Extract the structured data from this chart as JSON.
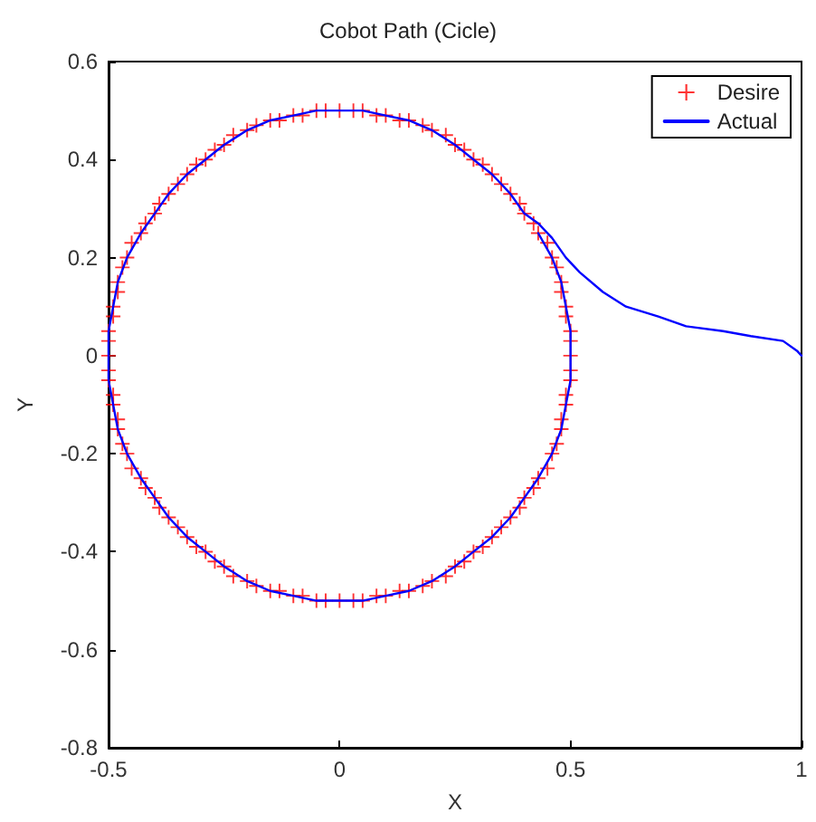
{
  "chart_data": {
    "type": "line",
    "title": "Cobot Path (Cicle)",
    "xlabel": "X",
    "ylabel": "Y",
    "xlim": [
      -0.5,
      1
    ],
    "xticks": [
      -0.5,
      0,
      0.5,
      1
    ],
    "ylim": [
      -0.8,
      0.6
    ],
    "yticks": [
      -0.8,
      -0.6,
      -0.4,
      -0.2,
      0,
      0.2,
      0.4,
      0.6
    ],
    "grid": false,
    "legend": "top right",
    "series": [
      {
        "name": "Desire",
        "type": "scatter",
        "marker": "cross",
        "color": "#ff0000",
        "x": [
          0.5,
          0.5,
          0.5,
          0.49,
          0.49,
          0.48,
          0.48,
          0.47,
          0.46,
          0.45,
          0.43,
          0.42,
          0.4,
          0.39,
          0.37,
          0.35,
          0.33,
          0.31,
          0.29,
          0.27,
          0.25,
          0.23,
          0.2,
          0.18,
          0.15,
          0.13,
          0.1,
          0.08,
          0.05,
          0.03,
          0,
          -0.03,
          -0.05,
          -0.08,
          -0.1,
          -0.13,
          -0.15,
          -0.18,
          -0.2,
          -0.23,
          -0.25,
          -0.27,
          -0.29,
          -0.31,
          -0.33,
          -0.35,
          -0.37,
          -0.39,
          -0.4,
          -0.42,
          -0.43,
          -0.45,
          -0.46,
          -0.47,
          -0.48,
          -0.48,
          -0.49,
          -0.49,
          -0.5,
          -0.5,
          -0.5,
          -0.5,
          -0.5,
          -0.49,
          -0.49,
          -0.48,
          -0.48,
          -0.47,
          -0.46,
          -0.45,
          -0.43,
          -0.42,
          -0.4,
          -0.39,
          -0.37,
          -0.35,
          -0.33,
          -0.31,
          -0.29,
          -0.27,
          -0.25,
          -0.23,
          -0.2,
          -0.18,
          -0.15,
          -0.13,
          -0.1,
          -0.08,
          -0.05,
          -0.03,
          0,
          0.03,
          0.05,
          0.08,
          0.1,
          0.13,
          0.15,
          0.18,
          0.2,
          0.23,
          0.25,
          0.27,
          0.29,
          0.31,
          0.33,
          0.35,
          0.37,
          0.39,
          0.4,
          0.42,
          0.43,
          0.45,
          0.46,
          0.47,
          0.48,
          0.48,
          0.49,
          0.49,
          0.5,
          0.5
        ],
        "values": [
          0,
          0.03,
          0.05,
          0.08,
          0.1,
          0.13,
          0.15,
          0.18,
          0.2,
          0.23,
          0.25,
          0.27,
          0.29,
          0.31,
          0.33,
          0.35,
          0.37,
          0.39,
          0.4,
          0.42,
          0.43,
          0.45,
          0.46,
          0.47,
          0.48,
          0.48,
          0.49,
          0.49,
          0.5,
          0.5,
          0.5,
          0.5,
          0.5,
          0.49,
          0.49,
          0.48,
          0.48,
          0.47,
          0.46,
          0.45,
          0.43,
          0.42,
          0.4,
          0.39,
          0.37,
          0.35,
          0.33,
          0.31,
          0.29,
          0.27,
          0.25,
          0.23,
          0.2,
          0.18,
          0.15,
          0.13,
          0.1,
          0.08,
          0.05,
          0.03,
          0,
          -0.03,
          -0.05,
          -0.08,
          -0.1,
          -0.13,
          -0.15,
          -0.18,
          -0.2,
          -0.23,
          -0.25,
          -0.27,
          -0.29,
          -0.31,
          -0.33,
          -0.35,
          -0.37,
          -0.39,
          -0.4,
          -0.42,
          -0.43,
          -0.45,
          -0.46,
          -0.47,
          -0.48,
          -0.48,
          -0.49,
          -0.49,
          -0.5,
          -0.5,
          -0.5,
          -0.5,
          -0.5,
          -0.49,
          -0.49,
          -0.48,
          -0.48,
          -0.47,
          -0.46,
          -0.45,
          -0.43,
          -0.42,
          -0.4,
          -0.39,
          -0.37,
          -0.35,
          -0.33,
          -0.31,
          -0.29,
          -0.27,
          -0.25,
          -0.23,
          -0.2,
          -0.18,
          -0.15,
          -0.13,
          -0.1,
          -0.08,
          -0.05,
          -0.03
        ]
      },
      {
        "name": "Actual",
        "marker": "none",
        "color": "#0000ff",
        "x": [
          1.0,
          0.99,
          0.96,
          0.89,
          0.83,
          0.75,
          0.69,
          0.62,
          0.57,
          0.52,
          0.49,
          0.46,
          0.43,
          0.4,
          0.37,
          0.33,
          0.29,
          0.25,
          0.2,
          0.15,
          0.1,
          0.05,
          0,
          -0.05,
          -0.1,
          -0.15,
          -0.2,
          -0.25,
          -0.29,
          -0.33,
          -0.37,
          -0.4,
          -0.43,
          -0.46,
          -0.48,
          -0.49,
          -0.5,
          -0.5,
          -0.5,
          -0.49,
          -0.48,
          -0.46,
          -0.43,
          -0.4,
          -0.37,
          -0.33,
          -0.29,
          -0.25,
          -0.2,
          -0.15,
          -0.1,
          -0.05,
          0,
          0.05,
          0.1,
          0.15,
          0.2,
          0.25,
          0.29,
          0.33,
          0.37,
          0.4,
          0.43,
          0.46,
          0.48,
          0.49,
          0.5,
          0.5,
          0.5,
          0.49,
          0.48,
          0.46,
          0.43
        ],
        "values": [
          0.0,
          0.01,
          0.03,
          0.04,
          0.05,
          0.06,
          0.08,
          0.1,
          0.13,
          0.17,
          0.2,
          0.24,
          0.27,
          0.29,
          0.33,
          0.37,
          0.4,
          0.43,
          0.46,
          0.48,
          0.49,
          0.5,
          0.5,
          0.5,
          0.49,
          0.48,
          0.46,
          0.43,
          0.4,
          0.37,
          0.33,
          0.29,
          0.25,
          0.2,
          0.15,
          0.1,
          0.05,
          0,
          -0.05,
          -0.1,
          -0.15,
          -0.2,
          -0.25,
          -0.29,
          -0.33,
          -0.37,
          -0.4,
          -0.43,
          -0.46,
          -0.48,
          -0.49,
          -0.5,
          -0.5,
          -0.5,
          -0.49,
          -0.48,
          -0.46,
          -0.43,
          -0.4,
          -0.37,
          -0.33,
          -0.29,
          -0.25,
          -0.2,
          -0.15,
          -0.1,
          -0.05,
          0,
          0.05,
          0.1,
          0.15,
          0.2,
          0.25
        ]
      }
    ]
  }
}
